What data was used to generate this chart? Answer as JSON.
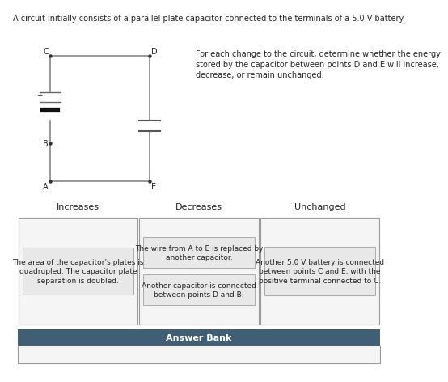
{
  "title": "A circuit initially consists of a parallel plate capacitor connected to the terminals of a 5.0 V battery.",
  "instruction": "For each change to the circuit, determine whether the energy\nstored by the capacitor between points D and E will increase,\ndecrease, or remain unchanged.",
  "col_headers": [
    "Increases",
    "Decreases",
    "Unchanged"
  ],
  "increases_items": [
    "The area of the capacitor’s plates is\nquadrupled. The capacitor plate\nseparation is doubled."
  ],
  "decreases_items": [
    "The wire from A to E is replaced by\nanother capacitor.",
    "Another capacitor is connected\nbetween points D and B."
  ],
  "unchanged_items": [
    "Another 5.0 V battery is connected\nbetween points C and E, with the\npositive terminal connected to C."
  ],
  "answer_bank_label": "Answer Bank",
  "bg_color": "#ffffff",
  "header_bg": "#415f74",
  "header_fg": "#ffffff",
  "border_color": "#999999",
  "inner_box_color": "#e8e8e8",
  "outer_box_color": "#f5f5f5",
  "circuit_color": "#888888",
  "label_color": "#222222",
  "title_fontsize": 7.0,
  "instruction_fontsize": 7.0,
  "header_fontsize": 8.0,
  "item_fontsize": 6.5
}
